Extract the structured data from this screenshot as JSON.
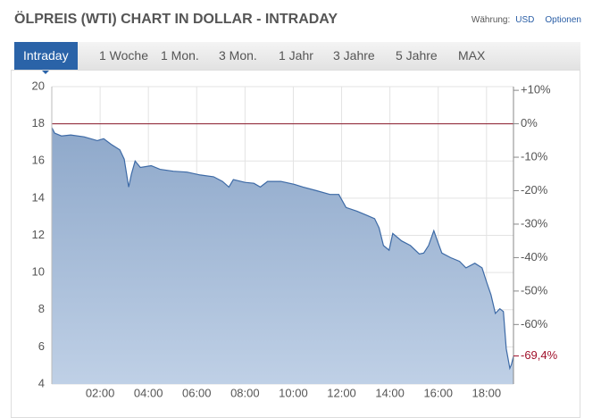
{
  "header": {
    "title": "ÖLPREIS (WTI) CHART IN DOLLAR - INTRADAY",
    "currency_label": "Währung:",
    "currency": "USD",
    "options": "Optionen"
  },
  "tabs": [
    "Intraday",
    "1 Woche",
    "1 Mon.",
    "3 Mon.",
    "1 Jahr",
    "3 Jahre",
    "5 Jahre",
    "MAX"
  ],
  "chart_data": {
    "type": "area",
    "color": "#3d6aa6",
    "x": [
      "00:00",
      "00:07",
      "00:24",
      "00:47",
      "01:20",
      "01:53",
      "02:09",
      "02:27",
      "02:49",
      "03:00",
      "03:11",
      "03:18",
      "03:27",
      "03:40",
      "04:07",
      "04:29",
      "05:02",
      "05:36",
      "06:09",
      "06:42",
      "07:04",
      "07:20",
      "07:31",
      "08:00",
      "08:22",
      "08:38",
      "08:56",
      "09:29",
      "10:02",
      "10:24",
      "10:58",
      "11:31",
      "11:53",
      "12:11",
      "12:38",
      "13:00",
      "13:22",
      "13:33",
      "13:44",
      "13:58",
      "14:07",
      "14:29",
      "14:51",
      "15:13",
      "15:24",
      "15:36",
      "15:49",
      "15:58",
      "16:09",
      "16:31",
      "16:53",
      "17:09",
      "17:31",
      "17:49",
      "18:00",
      "18:11",
      "18:22",
      "18:33",
      "18:42",
      "18:49",
      "18:58",
      "19:02",
      "19:07"
    ],
    "values": [
      17.8,
      17.5,
      17.35,
      17.4,
      17.3,
      17.1,
      17.2,
      16.9,
      16.6,
      16.1,
      14.6,
      15.3,
      16.0,
      15.65,
      15.75,
      15.55,
      15.45,
      15.4,
      15.25,
      15.15,
      14.9,
      14.6,
      15.0,
      14.85,
      14.8,
      14.6,
      14.9,
      14.9,
      14.75,
      14.6,
      14.4,
      14.2,
      14.2,
      13.5,
      13.3,
      13.1,
      12.9,
      12.4,
      11.45,
      11.2,
      12.1,
      11.7,
      11.45,
      11.0,
      11.05,
      11.45,
      12.25,
      11.7,
      11.05,
      10.8,
      10.6,
      10.25,
      10.5,
      10.25,
      9.5,
      8.8,
      7.8,
      8.05,
      7.9,
      5.9,
      4.85,
      5.05,
      5.5
    ],
    "xlim": [
      "00:00",
      "19:07"
    ],
    "xticks": [
      "02:00",
      "04:00",
      "06:00",
      "08:00",
      "10:00",
      "12:00",
      "14:00",
      "16:00",
      "18:00"
    ],
    "ylim": [
      4,
      20
    ],
    "yticks": [
      4,
      6,
      8,
      10,
      12,
      14,
      16,
      18,
      20
    ],
    "baseline": 18,
    "y2lim": [
      -77.8,
      11.1
    ],
    "y2ticks": [
      {
        "value": 10,
        "label": "+10%"
      },
      {
        "value": 0,
        "label": "0%"
      },
      {
        "value": -10,
        "label": "-10%"
      },
      {
        "value": -20,
        "label": "-20%"
      },
      {
        "value": -30,
        "label": "-30%"
      },
      {
        "value": -40,
        "label": "-40%"
      },
      {
        "value": -50,
        "label": "-50%"
      },
      {
        "value": -60,
        "label": "-60%"
      }
    ],
    "last_label": {
      "value": -69.4,
      "label": "-69,4%"
    },
    "grid": true
  }
}
